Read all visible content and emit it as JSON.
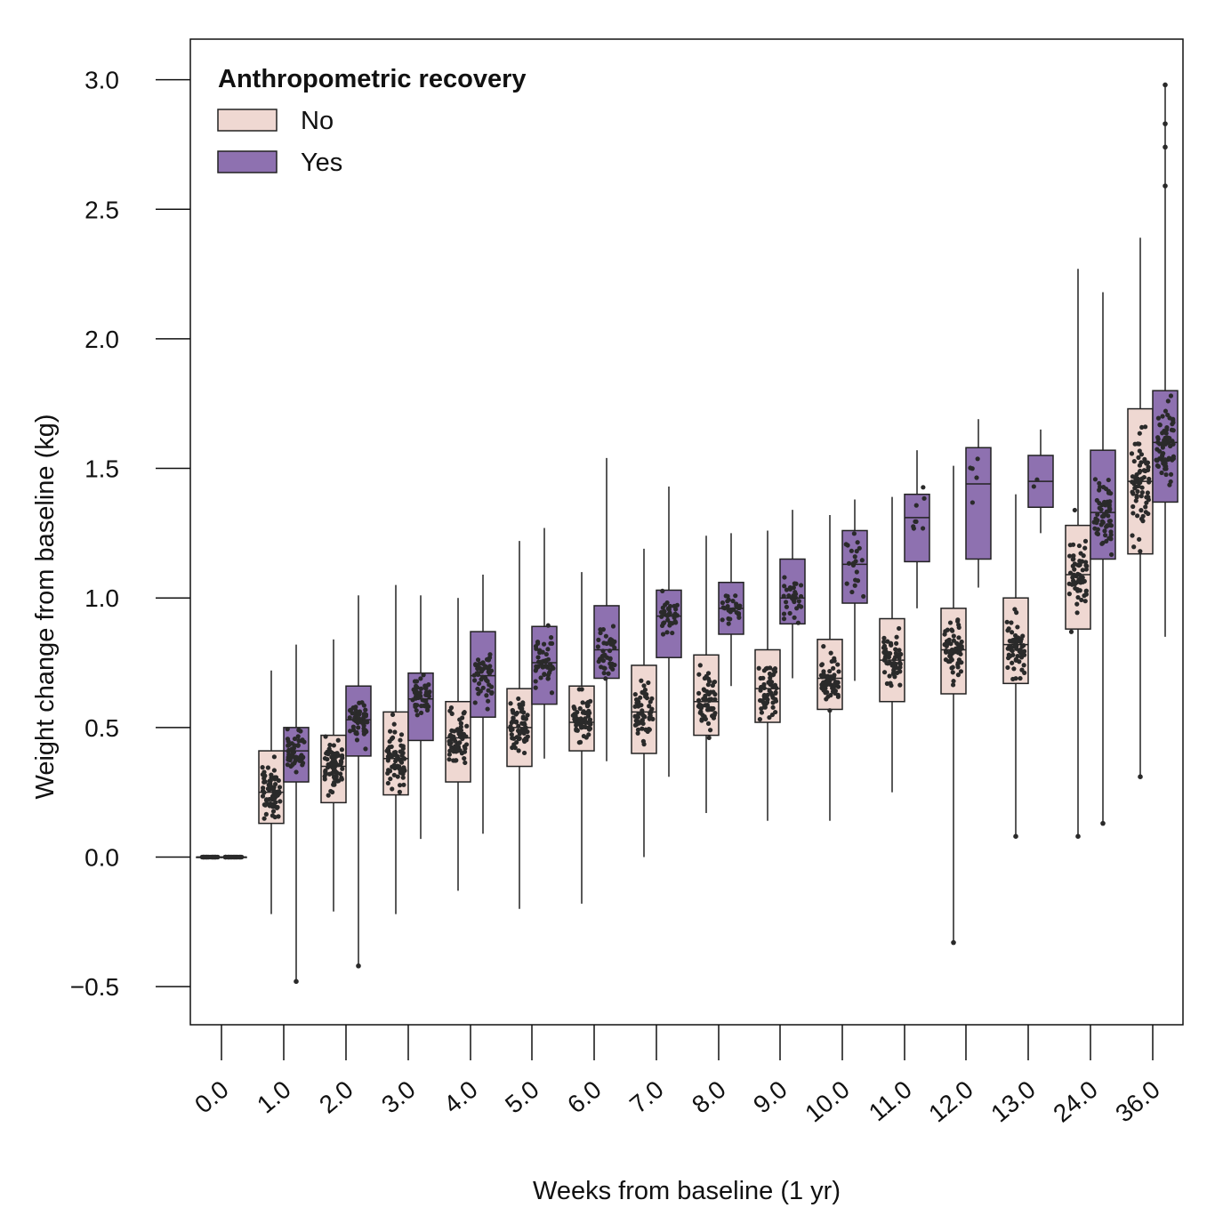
{
  "chart_data": {
    "type": "box",
    "xlabel": "Weeks from baseline (1 yr)",
    "ylabel": "Weight change from baseline (kg)",
    "ylim": [
      -0.6,
      3.15
    ],
    "yticks": [
      "−0.5",
      "0.0",
      "0.5",
      "1.0",
      "1.5",
      "2.0",
      "2.5",
      "3.0"
    ],
    "ytick_values": [
      -0.5,
      0.0,
      0.5,
      1.0,
      1.5,
      2.0,
      2.5,
      3.0
    ],
    "categories": [
      "0.0",
      "1.0",
      "2.0",
      "3.0",
      "4.0",
      "5.0",
      "6.0",
      "7.0",
      "8.0",
      "9.0",
      "10.0",
      "11.0",
      "12.0",
      "13.0",
      "24.0",
      "36.0"
    ],
    "legend": {
      "title": "Anthropometric recovery",
      "placement": "top-left",
      "entries": [
        {
          "label": "No",
          "color": "#efd8d2"
        },
        {
          "label": "Yes",
          "color": "#8e71b0"
        }
      ]
    },
    "series": [
      {
        "name": "No",
        "color": "#efd8d2",
        "boxes": [
          {
            "q1": 0.0,
            "median": 0.0,
            "q3": 0.0,
            "whisker_low": 0.0,
            "whisker_high": 0.0,
            "n": 40
          },
          {
            "q1": 0.13,
            "median": 0.25,
            "q3": 0.41,
            "whisker_low": -0.22,
            "whisker_high": 0.72,
            "n": 70
          },
          {
            "q1": 0.21,
            "median": 0.35,
            "q3": 0.47,
            "whisker_low": -0.21,
            "whisker_high": 0.84,
            "n": 70
          },
          {
            "q1": 0.24,
            "median": 0.38,
            "q3": 0.56,
            "whisker_low": -0.22,
            "whisker_high": 1.05,
            "n": 65
          },
          {
            "q1": 0.29,
            "median": 0.46,
            "q3": 0.6,
            "whisker_low": -0.13,
            "whisker_high": 1.0,
            "n": 65
          },
          {
            "q1": 0.35,
            "median": 0.5,
            "q3": 0.65,
            "whisker_low": -0.2,
            "whisker_high": 1.22,
            "n": 60
          },
          {
            "q1": 0.41,
            "median": 0.52,
            "q3": 0.66,
            "whisker_low": -0.18,
            "whisker_high": 1.1,
            "n": 60
          },
          {
            "q1": 0.4,
            "median": 0.56,
            "q3": 0.74,
            "whisker_low": 0.0,
            "whisker_high": 1.19,
            "n": 60
          },
          {
            "q1": 0.47,
            "median": 0.6,
            "q3": 0.78,
            "whisker_low": 0.17,
            "whisker_high": 1.24,
            "n": 60
          },
          {
            "q1": 0.52,
            "median": 0.65,
            "q3": 0.8,
            "whisker_low": 0.14,
            "whisker_high": 1.26,
            "n": 60
          },
          {
            "q1": 0.57,
            "median": 0.69,
            "q3": 0.84,
            "whisker_low": 0.14,
            "whisker_high": 1.32,
            "n": 60
          },
          {
            "q1": 0.6,
            "median": 0.76,
            "q3": 0.92,
            "whisker_low": 0.25,
            "whisker_high": 1.39,
            "n": 60
          },
          {
            "q1": 0.63,
            "median": 0.8,
            "q3": 0.96,
            "whisker_low": -0.33,
            "whisker_high": 1.51,
            "n": 60
          },
          {
            "q1": 0.67,
            "median": 0.82,
            "q3": 1.0,
            "whisker_low": 0.08,
            "whisker_high": 1.4,
            "n": 60
          },
          {
            "q1": 0.88,
            "median": 1.09,
            "q3": 1.28,
            "whisker_low": 0.08,
            "whisker_high": 2.27,
            "n": 60
          },
          {
            "q1": 1.17,
            "median": 1.45,
            "q3": 1.73,
            "whisker_low": 0.31,
            "whisker_high": 2.39,
            "n": 70
          }
        ]
      },
      {
        "name": "Yes",
        "color": "#8e71b0",
        "boxes": [
          {
            "q1": 0.0,
            "median": 0.0,
            "q3": 0.0,
            "whisker_low": 0.0,
            "whisker_high": 0.0,
            "n": 40
          },
          {
            "q1": 0.29,
            "median": 0.41,
            "q3": 0.5,
            "whisker_low": -0.48,
            "whisker_high": 0.82,
            "n": 50
          },
          {
            "q1": 0.39,
            "median": 0.53,
            "q3": 0.66,
            "whisker_low": -0.42,
            "whisker_high": 1.01,
            "n": 50
          },
          {
            "q1": 0.45,
            "median": 0.61,
            "q3": 0.71,
            "whisker_low": 0.07,
            "whisker_high": 1.01,
            "n": 50
          },
          {
            "q1": 0.54,
            "median": 0.7,
            "q3": 0.87,
            "whisker_low": 0.09,
            "whisker_high": 1.09,
            "n": 50
          },
          {
            "q1": 0.59,
            "median": 0.75,
            "q3": 0.89,
            "whisker_low": 0.38,
            "whisker_high": 1.27,
            "n": 45
          },
          {
            "q1": 0.69,
            "median": 0.8,
            "q3": 0.97,
            "whisker_low": 0.37,
            "whisker_high": 1.54,
            "n": 40
          },
          {
            "q1": 0.77,
            "median": 0.93,
            "q3": 1.03,
            "whisker_low": 0.31,
            "whisker_high": 1.43,
            "n": 35
          },
          {
            "q1": 0.86,
            "median": 0.96,
            "q3": 1.06,
            "whisker_low": 0.66,
            "whisker_high": 1.25,
            "n": 30
          },
          {
            "q1": 0.9,
            "median": 1.0,
            "q3": 1.15,
            "whisker_low": 0.69,
            "whisker_high": 1.34,
            "n": 30
          },
          {
            "q1": 0.98,
            "median": 1.13,
            "q3": 1.26,
            "whisker_low": 0.68,
            "whisker_high": 1.38,
            "n": 20
          },
          {
            "q1": 1.14,
            "median": 1.31,
            "q3": 1.4,
            "whisker_low": 0.96,
            "whisker_high": 1.57,
            "n": 8
          },
          {
            "q1": 1.15,
            "median": 1.44,
            "q3": 1.58,
            "whisker_low": 1.04,
            "whisker_high": 1.69,
            "n": 5
          },
          {
            "q1": 1.35,
            "median": 1.45,
            "q3": 1.55,
            "whisker_low": 1.25,
            "whisker_high": 1.65,
            "n": 2
          },
          {
            "q1": 1.15,
            "median": 1.33,
            "q3": 1.57,
            "whisker_low": 0.13,
            "whisker_high": 2.18,
            "n": 60
          },
          {
            "q1": 1.37,
            "median": 1.6,
            "q3": 1.8,
            "whisker_low": 0.85,
            "whisker_high": 2.98,
            "n": 70
          }
        ]
      }
    ],
    "outliers": [
      {
        "category": "1.0",
        "group": "Yes",
        "y": -0.48
      },
      {
        "category": "2.0",
        "group": "Yes",
        "y": -0.42
      },
      {
        "category": "12.0",
        "group": "No",
        "y": -0.33
      },
      {
        "category": "13.0",
        "group": "No",
        "y": 0.08
      },
      {
        "category": "24.0",
        "group": "No",
        "y": 0.08
      },
      {
        "category": "24.0",
        "group": "Yes",
        "y": 0.13
      },
      {
        "category": "36.0",
        "group": "No",
        "y": 0.31
      },
      {
        "category": "36.0",
        "group": "Yes",
        "y": 2.98
      },
      {
        "category": "36.0",
        "group": "Yes",
        "y": 2.83
      },
      {
        "category": "36.0",
        "group": "Yes",
        "y": 2.74
      },
      {
        "category": "36.0",
        "group": "Yes",
        "y": 2.59
      }
    ]
  }
}
